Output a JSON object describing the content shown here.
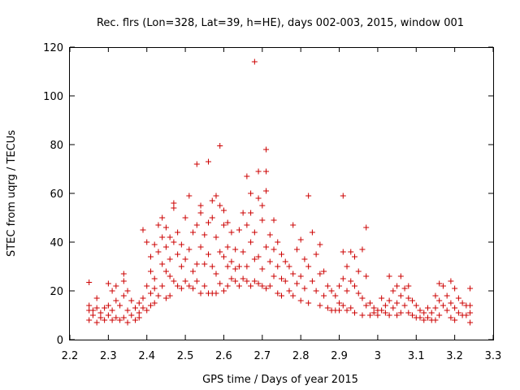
{
  "chart_data": {
    "type": "scatter",
    "title": "Rec. flrs (Lon=328, Lat=39, h=HE), days 002-003, 2015, window 001",
    "xlabel": "GPS time / Days of year 2015",
    "ylabel": "STEC from uqrg / TECUs",
    "xlim": [
      2.2,
      3.3
    ],
    "ylim": [
      0,
      120
    ],
    "xticks": [
      "2.2",
      "2.3",
      "2.4",
      "2.5",
      "2.6",
      "2.7",
      "2.8",
      "2.9",
      "3",
      "3.1",
      "3.2",
      "3.3"
    ],
    "yticks": [
      "0",
      "20",
      "40",
      "60",
      "80",
      "100",
      "120"
    ],
    "grid": false,
    "marker": "plus",
    "color": "#cc0000",
    "series": [
      {
        "name": "",
        "points": [
          [
            2.25,
            23.5
          ],
          [
            2.25,
            14
          ],
          [
            2.25,
            12
          ],
          [
            2.25,
            8
          ],
          [
            2.26,
            10
          ],
          [
            2.26,
            12
          ],
          [
            2.27,
            17
          ],
          [
            2.27,
            13
          ],
          [
            2.27,
            7
          ],
          [
            2.28,
            11
          ],
          [
            2.28,
            9
          ],
          [
            2.29,
            13
          ],
          [
            2.29,
            8
          ],
          [
            2.3,
            23
          ],
          [
            2.3,
            14
          ],
          [
            2.3,
            10
          ],
          [
            2.31,
            20
          ],
          [
            2.31,
            12
          ],
          [
            2.31,
            8
          ],
          [
            2.32,
            22
          ],
          [
            2.32,
            16
          ],
          [
            2.32,
            9
          ],
          [
            2.33,
            14
          ],
          [
            2.33,
            8
          ],
          [
            2.34,
            27
          ],
          [
            2.34,
            24
          ],
          [
            2.34,
            18
          ],
          [
            2.34,
            9
          ],
          [
            2.35,
            20
          ],
          [
            2.35,
            12
          ],
          [
            2.35,
            7
          ],
          [
            2.36,
            16
          ],
          [
            2.36,
            10
          ],
          [
            2.37,
            13
          ],
          [
            2.37,
            8
          ],
          [
            2.38,
            15
          ],
          [
            2.38,
            11
          ],
          [
            2.38,
            9
          ],
          [
            2.39,
            45
          ],
          [
            2.39,
            17
          ],
          [
            2.39,
            13
          ],
          [
            2.4,
            40
          ],
          [
            2.4,
            22
          ],
          [
            2.4,
            12
          ],
          [
            2.41,
            34
          ],
          [
            2.41,
            28
          ],
          [
            2.41,
            19
          ],
          [
            2.41,
            14
          ],
          [
            2.42,
            39
          ],
          [
            2.42,
            25
          ],
          [
            2.42,
            21
          ],
          [
            2.42,
            15
          ],
          [
            2.43,
            47
          ],
          [
            2.43,
            36
          ],
          [
            2.43,
            18
          ],
          [
            2.44,
            50
          ],
          [
            2.44,
            42
          ],
          [
            2.44,
            31
          ],
          [
            2.44,
            22
          ],
          [
            2.45,
            46
          ],
          [
            2.45,
            38
          ],
          [
            2.45,
            28
          ],
          [
            2.45,
            17
          ],
          [
            2.46,
            42
          ],
          [
            2.46,
            33
          ],
          [
            2.46,
            26
          ],
          [
            2.46,
            18
          ],
          [
            2.47,
            56
          ],
          [
            2.47,
            54
          ],
          [
            2.47,
            40
          ],
          [
            2.47,
            24
          ],
          [
            2.48,
            44
          ],
          [
            2.48,
            35
          ],
          [
            2.48,
            22
          ],
          [
            2.49,
            39
          ],
          [
            2.49,
            30
          ],
          [
            2.49,
            21
          ],
          [
            2.5,
            50
          ],
          [
            2.5,
            33
          ],
          [
            2.5,
            24
          ],
          [
            2.51,
            59
          ],
          [
            2.51,
            37
          ],
          [
            2.51,
            22
          ],
          [
            2.52,
            44
          ],
          [
            2.52,
            28
          ],
          [
            2.52,
            21
          ],
          [
            2.53,
            72
          ],
          [
            2.53,
            47
          ],
          [
            2.53,
            31
          ],
          [
            2.53,
            24
          ],
          [
            2.54,
            55
          ],
          [
            2.54,
            52
          ],
          [
            2.54,
            38
          ],
          [
            2.54,
            19
          ],
          [
            2.55,
            43
          ],
          [
            2.55,
            31
          ],
          [
            2.55,
            22
          ],
          [
            2.56,
            73
          ],
          [
            2.56,
            48
          ],
          [
            2.56,
            35
          ],
          [
            2.56,
            19
          ],
          [
            2.57,
            57
          ],
          [
            2.57,
            50
          ],
          [
            2.57,
            30
          ],
          [
            2.57,
            19
          ],
          [
            2.58,
            59
          ],
          [
            2.58,
            42
          ],
          [
            2.58,
            27
          ],
          [
            2.58,
            19
          ],
          [
            2.59,
            79.5
          ],
          [
            2.59,
            55
          ],
          [
            2.59,
            36
          ],
          [
            2.59,
            23
          ],
          [
            2.6,
            53
          ],
          [
            2.6,
            47
          ],
          [
            2.6,
            34
          ],
          [
            2.6,
            20
          ],
          [
            2.61,
            48
          ],
          [
            2.61,
            38
          ],
          [
            2.61,
            30
          ],
          [
            2.61,
            22
          ],
          [
            2.62,
            44
          ],
          [
            2.62,
            32
          ],
          [
            2.62,
            25
          ],
          [
            2.63,
            37
          ],
          [
            2.63,
            29
          ],
          [
            2.63,
            24
          ],
          [
            2.64,
            45
          ],
          [
            2.64,
            30
          ],
          [
            2.64,
            22
          ],
          [
            2.65,
            52
          ],
          [
            2.65,
            36
          ],
          [
            2.65,
            25
          ],
          [
            2.66,
            67
          ],
          [
            2.66,
            47
          ],
          [
            2.66,
            30
          ],
          [
            2.66,
            24
          ],
          [
            2.67,
            60
          ],
          [
            2.67,
            52
          ],
          [
            2.67,
            40
          ],
          [
            2.67,
            22
          ],
          [
            2.68,
            114
          ],
          [
            2.68,
            44
          ],
          [
            2.68,
            33
          ],
          [
            2.68,
            24
          ],
          [
            2.69,
            69
          ],
          [
            2.69,
            58
          ],
          [
            2.69,
            34
          ],
          [
            2.69,
            23
          ],
          [
            2.7,
            55
          ],
          [
            2.7,
            49
          ],
          [
            2.7,
            29
          ],
          [
            2.7,
            22
          ],
          [
            2.71,
            78
          ],
          [
            2.71,
            69
          ],
          [
            2.71,
            61
          ],
          [
            2.71,
            38
          ],
          [
            2.71,
            21
          ],
          [
            2.72,
            43
          ],
          [
            2.72,
            32
          ],
          [
            2.72,
            22
          ],
          [
            2.73,
            49
          ],
          [
            2.73,
            37
          ],
          [
            2.73,
            26
          ],
          [
            2.74,
            40
          ],
          [
            2.74,
            30
          ],
          [
            2.74,
            19
          ],
          [
            2.75,
            35
          ],
          [
            2.75,
            25
          ],
          [
            2.75,
            18
          ],
          [
            2.76,
            32
          ],
          [
            2.76,
            24
          ],
          [
            2.77,
            30
          ],
          [
            2.77,
            20
          ],
          [
            2.78,
            47
          ],
          [
            2.78,
            27
          ],
          [
            2.78,
            18
          ],
          [
            2.79,
            37
          ],
          [
            2.79,
            23
          ],
          [
            2.8,
            41
          ],
          [
            2.8,
            26
          ],
          [
            2.8,
            16
          ],
          [
            2.81,
            33
          ],
          [
            2.81,
            21
          ],
          [
            2.82,
            59
          ],
          [
            2.82,
            30
          ],
          [
            2.82,
            15
          ],
          [
            2.83,
            44
          ],
          [
            2.83,
            24
          ],
          [
            2.84,
            35
          ],
          [
            2.84,
            20
          ],
          [
            2.85,
            39
          ],
          [
            2.85,
            27
          ],
          [
            2.85,
            14
          ],
          [
            2.86,
            28
          ],
          [
            2.86,
            18
          ],
          [
            2.87,
            22
          ],
          [
            2.87,
            13
          ],
          [
            2.88,
            20
          ],
          [
            2.88,
            12
          ],
          [
            2.89,
            18
          ],
          [
            2.89,
            12
          ],
          [
            2.9,
            22
          ],
          [
            2.9,
            15
          ],
          [
            2.9,
            12
          ],
          [
            2.91,
            59
          ],
          [
            2.91,
            36
          ],
          [
            2.91,
            25
          ],
          [
            2.91,
            14
          ],
          [
            2.92,
            30
          ],
          [
            2.92,
            20
          ],
          [
            2.92,
            12
          ],
          [
            2.93,
            36
          ],
          [
            2.93,
            24
          ],
          [
            2.93,
            13
          ],
          [
            2.94,
            34
          ],
          [
            2.94,
            22
          ],
          [
            2.94,
            11
          ],
          [
            2.95,
            28
          ],
          [
            2.95,
            19
          ],
          [
            2.96,
            37
          ],
          [
            2.96,
            17
          ],
          [
            2.96,
            10
          ],
          [
            2.97,
            46
          ],
          [
            2.97,
            26
          ],
          [
            2.97,
            14
          ],
          [
            2.98,
            15
          ],
          [
            2.98,
            10
          ],
          [
            2.99,
            13
          ],
          [
            2.99,
            11
          ],
          [
            3.0,
            12
          ],
          [
            3.0,
            10
          ],
          [
            3.01,
            17
          ],
          [
            3.01,
            12
          ],
          [
            3.02,
            14
          ],
          [
            3.02,
            11
          ],
          [
            3.03,
            26
          ],
          [
            3.03,
            16
          ],
          [
            3.03,
            10
          ],
          [
            3.04,
            20
          ],
          [
            3.04,
            13
          ],
          [
            3.05,
            22
          ],
          [
            3.05,
            15
          ],
          [
            3.05,
            10
          ],
          [
            3.06,
            26
          ],
          [
            3.06,
            18
          ],
          [
            3.06,
            11
          ],
          [
            3.07,
            21
          ],
          [
            3.07,
            14
          ],
          [
            3.08,
            22
          ],
          [
            3.08,
            17
          ],
          [
            3.08,
            11
          ],
          [
            3.09,
            16
          ],
          [
            3.09,
            10
          ],
          [
            3.1,
            14
          ],
          [
            3.1,
            9
          ],
          [
            3.11,
            12
          ],
          [
            3.11,
            9
          ],
          [
            3.12,
            11
          ],
          [
            3.12,
            8
          ],
          [
            3.13,
            13
          ],
          [
            3.13,
            9
          ],
          [
            3.14,
            11
          ],
          [
            3.14,
            8
          ],
          [
            3.15,
            18
          ],
          [
            3.15,
            13
          ],
          [
            3.15,
            8
          ],
          [
            3.16,
            23
          ],
          [
            3.16,
            16
          ],
          [
            3.16,
            10
          ],
          [
            3.17,
            22
          ],
          [
            3.17,
            14
          ],
          [
            3.18,
            18
          ],
          [
            3.18,
            12
          ],
          [
            3.19,
            24
          ],
          [
            3.19,
            15
          ],
          [
            3.19,
            9
          ],
          [
            3.2,
            21
          ],
          [
            3.2,
            13
          ],
          [
            3.2,
            8
          ],
          [
            3.21,
            17
          ],
          [
            3.21,
            11
          ],
          [
            3.22,
            15
          ],
          [
            3.22,
            10
          ],
          [
            3.23,
            14
          ],
          [
            3.23,
            10
          ],
          [
            3.24,
            21
          ],
          [
            3.24,
            14
          ],
          [
            3.24,
            11
          ],
          [
            3.24,
            7
          ]
        ]
      }
    ]
  }
}
